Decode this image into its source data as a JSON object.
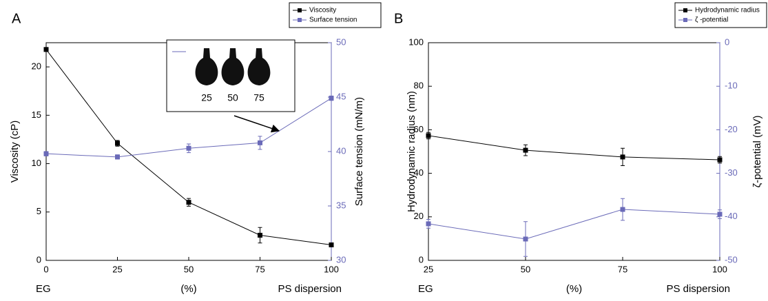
{
  "chart_data": [
    {
      "type": "line",
      "panel": "A",
      "x": [
        0,
        25,
        50,
        75,
        100
      ],
      "xlim": [
        0,
        100
      ],
      "xticks": [
        0,
        25,
        50,
        75,
        100
      ],
      "ylim": [
        0,
        22.5
      ],
      "yticks": [
        0,
        5,
        10,
        15,
        20
      ],
      "y2lim": [
        30,
        50
      ],
      "y2ticks": [
        30,
        35,
        40,
        45,
        50
      ],
      "y_label": "Viscosity (cP)",
      "y2_label": "Surface tension (mN/m)",
      "x_label_left": "EG",
      "x_label": "(%)",
      "x_label_right": "PS dispersion",
      "series": [
        {
          "name": "Viscosity",
          "color": "#000000",
          "values": [
            21.8,
            12.1,
            6.0,
            2.6,
            1.6
          ],
          "errors": [
            0.2,
            0.3,
            0.4,
            0.8,
            0.1
          ]
        },
        {
          "name": "Surface tension",
          "color": "#6a6ab8",
          "axis": "y2",
          "values": [
            39.8,
            39.5,
            40.3,
            40.8,
            44.9
          ],
          "errors": [
            0.2,
            0.2,
            0.4,
            0.6,
            0.2
          ]
        }
      ],
      "inset": {
        "labels": [
          "25",
          "50",
          "75"
        ]
      }
    },
    {
      "type": "line",
      "panel": "B",
      "x": [
        25,
        50,
        75,
        100
      ],
      "xlim": [
        25,
        100
      ],
      "xticks": [
        25,
        50,
        75,
        100
      ],
      "ylim": [
        0,
        100
      ],
      "yticks": [
        0,
        20,
        40,
        60,
        80,
        100
      ],
      "y2lim": [
        -50,
        0
      ],
      "y2ticks": [
        -50,
        -40,
        -30,
        -20,
        -10,
        0
      ],
      "y_label": "Hydrodynamic radius (nm)",
      "y2_label": "ζ-potential (mV)",
      "x_label_left": "EG",
      "x_label": "(%)",
      "x_label_right": "PS dispersion",
      "series": [
        {
          "name": "Hydrodynamic radius",
          "color": "#000000",
          "values": [
            57.3,
            50.6,
            47.5,
            46.2
          ],
          "errors": [
            1.5,
            2.5,
            4,
            1.5
          ]
        },
        {
          "name": "ζ -potential",
          "color": "#6a6ab8",
          "axis": "y2",
          "values": [
            -41.6,
            -45.1,
            -38.3,
            -39.4
          ],
          "errors": [
            1,
            4,
            2.5,
            1
          ]
        }
      ]
    }
  ]
}
